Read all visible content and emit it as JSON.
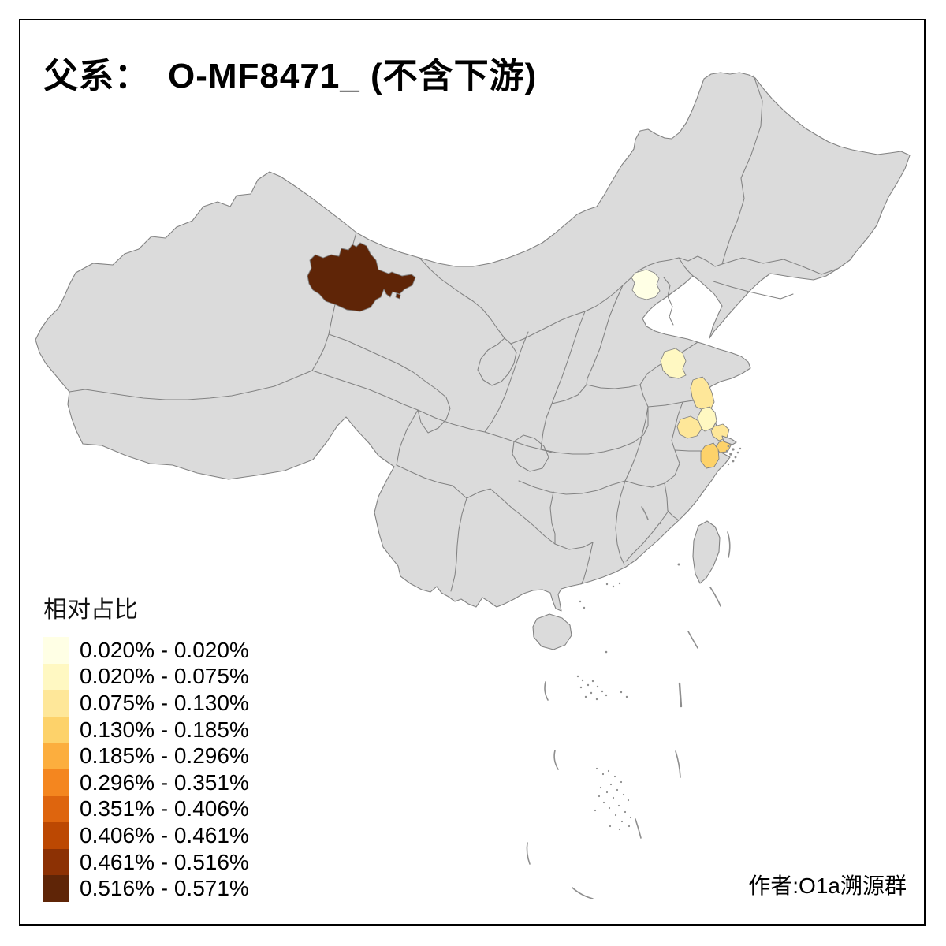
{
  "title": "父系：　O-MF8471_ (不含下游)",
  "author": "作者:O1a溯源群",
  "legend": {
    "title": "相对占比",
    "entries": [
      {
        "label": "0.020% - 0.020%",
        "color": "#FFFFE5"
      },
      {
        "label": "0.020% - 0.075%",
        "color": "#FFF8C2"
      },
      {
        "label": "0.075% - 0.130%",
        "color": "#FEE799"
      },
      {
        "label": "0.130% - 0.185%",
        "color": "#FDD26A"
      },
      {
        "label": "0.185% - 0.296%",
        "color": "#FCAE3E"
      },
      {
        "label": "0.296% - 0.351%",
        "color": "#F4861F"
      },
      {
        "label": "0.351% - 0.406%",
        "color": "#DE650E"
      },
      {
        "label": "0.406% - 0.461%",
        "color": "#BC4802"
      },
      {
        "label": "0.461% - 0.516%",
        "color": "#8C3104"
      },
      {
        "label": "0.516% - 0.571%",
        "color": "#5F2507"
      }
    ]
  },
  "map": {
    "land_fill": "#DBDBDB",
    "border_color": "#828282",
    "background": "#FFFFFF",
    "highlighted_regions": [
      {
        "name": "northwest-dark-region",
        "class": 10
      },
      {
        "name": "northwest-dark-region-islet",
        "class": 10
      },
      {
        "name": "north-capital-region",
        "class": 1
      },
      {
        "name": "west-shandong-region",
        "class": 2
      },
      {
        "name": "north-jiangsu-coastal-region",
        "class": 3
      },
      {
        "name": "mid-jiangsu-region",
        "class": 2
      },
      {
        "name": "yangzhou-area-region",
        "class": 3
      },
      {
        "name": "nantong-area-region",
        "class": 3
      },
      {
        "name": "shanghai-region",
        "class": 4
      },
      {
        "name": "north-zhejiang-region",
        "class": 4
      }
    ]
  }
}
